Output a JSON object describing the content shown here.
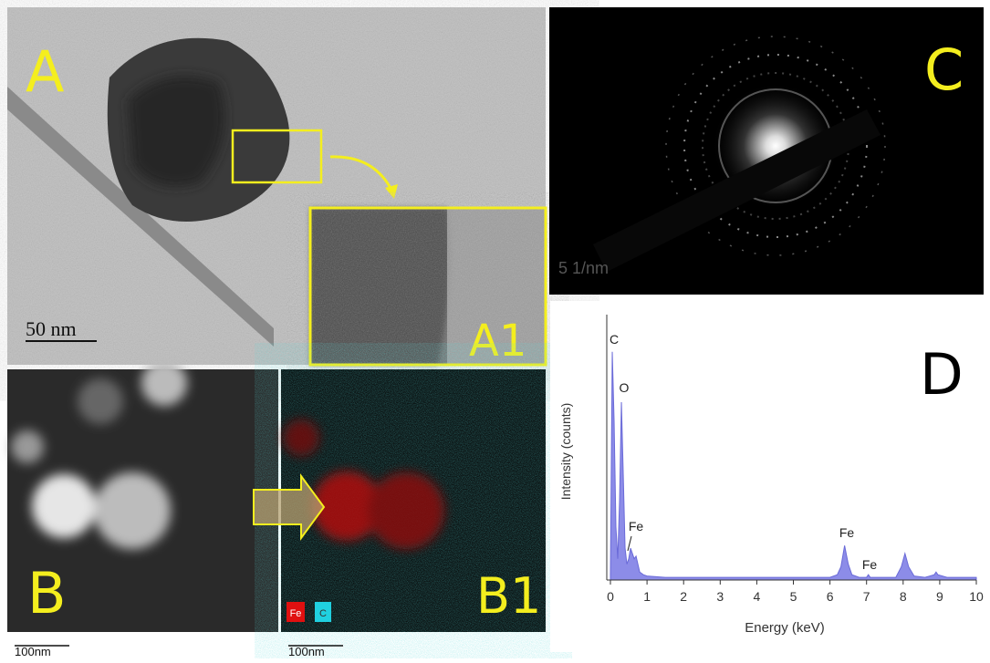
{
  "panels": {
    "a": {
      "label": "A",
      "inset_label": "A1",
      "scale_bar": "50 nm"
    },
    "c": {
      "label": "C",
      "scale_bar": "5 1/nm"
    },
    "b": {
      "label": "B",
      "scale_bar": "100nm"
    },
    "b1": {
      "label": "B1",
      "scale_bar": "100nm",
      "legend": [
        "Fe",
        "C"
      ]
    },
    "d": {
      "label": "D"
    }
  },
  "chart_data": {
    "type": "area",
    "x_label": "Energy (keV)",
    "y_label": "Intensity (counts)",
    "color": "#8c8ce8",
    "x": [
      0,
      0.05,
      0.1,
      0.15,
      0.2,
      0.25,
      0.3,
      0.35,
      0.4,
      0.45,
      0.5,
      0.55,
      0.6,
      0.65,
      0.7,
      0.8,
      0.9,
      1,
      1.5,
      2,
      3,
      4,
      5,
      6,
      6.2,
      6.3,
      6.4,
      6.5,
      6.6,
      6.8,
      7,
      7.05,
      7.1,
      7.3,
      7.8,
      7.95,
      8.05,
      8.15,
      8.3,
      8.6,
      8.85,
      8.9,
      8.95,
      9.2,
      10
    ],
    "values": [
      2,
      86,
      60,
      20,
      8,
      30,
      67,
      40,
      12,
      6,
      8,
      12,
      10,
      8,
      9,
      3,
      2,
      1.5,
      1,
      1,
      1,
      1,
      1,
      1,
      2,
      5,
      13,
      6,
      2,
      1,
      1,
      2,
      1,
      1,
      1,
      5,
      10,
      5,
      1.5,
      1,
      2,
      3,
      2,
      1,
      1
    ],
    "annotations": [
      "C",
      "O",
      "Fe",
      "Fe",
      "Fe"
    ],
    "xlim": [
      -0.1,
      10
    ],
    "ylim": [
      0,
      100
    ],
    "xticks": [
      0,
      1,
      2,
      3,
      4,
      5,
      6,
      7,
      8,
      9,
      10
    ]
  }
}
